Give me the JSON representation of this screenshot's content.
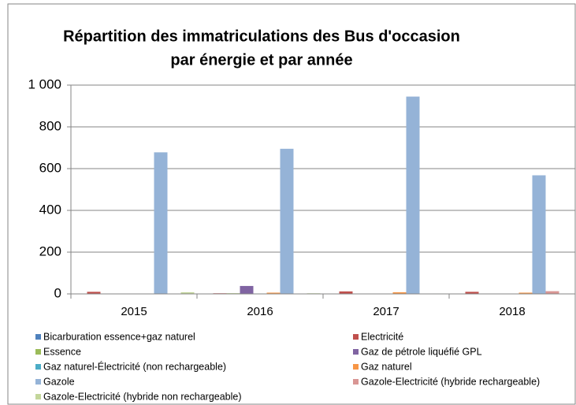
{
  "chart_data": {
    "type": "bar",
    "title": [
      "Répartition des immatriculations des Bus d'occasion",
      "par énergie et par année"
    ],
    "categories": [
      "2015",
      "2016",
      "2017",
      "2018"
    ],
    "series": [
      {
        "name": "Bicarburation essence+gaz naturel",
        "color": "#4f81bd",
        "values": [
          0,
          1,
          0,
          0
        ]
      },
      {
        "name": "Electricité",
        "color": "#c0504d",
        "values": [
          10,
          3,
          12,
          10
        ]
      },
      {
        "name": "Essence",
        "color": "#9bbb59",
        "values": [
          0,
          3,
          0,
          0
        ]
      },
      {
        "name": "Gaz de pétrole liquéfié GPL",
        "color": "#8064a2",
        "values": [
          0,
          38,
          0,
          0
        ]
      },
      {
        "name": "Gaz naturel-Électricité (non rechargeable)",
        "color": "#4bacc6",
        "values": [
          0,
          2,
          0,
          0
        ]
      },
      {
        "name": "Gaz naturel",
        "color": "#f79646",
        "values": [
          0,
          6,
          8,
          6
        ]
      },
      {
        "name": "Gazole",
        "color": "#95b3d7",
        "values": [
          678,
          695,
          945,
          568
        ]
      },
      {
        "name": "Gazole-Electricité (hybride rechargeable)",
        "color": "#d99694",
        "values": [
          0,
          0,
          0,
          13
        ]
      },
      {
        "name": "Gazole-Electricité (hybride non rechargeable)",
        "color": "#c3d69b",
        "values": [
          8,
          3,
          2,
          0
        ]
      }
    ],
    "ylim": [
      0,
      1000
    ],
    "yticks": [
      0,
      200,
      400,
      600,
      800,
      {
        "value": 1000,
        "label": "1 000"
      }
    ],
    "grid": true,
    "legend": "bottom"
  }
}
